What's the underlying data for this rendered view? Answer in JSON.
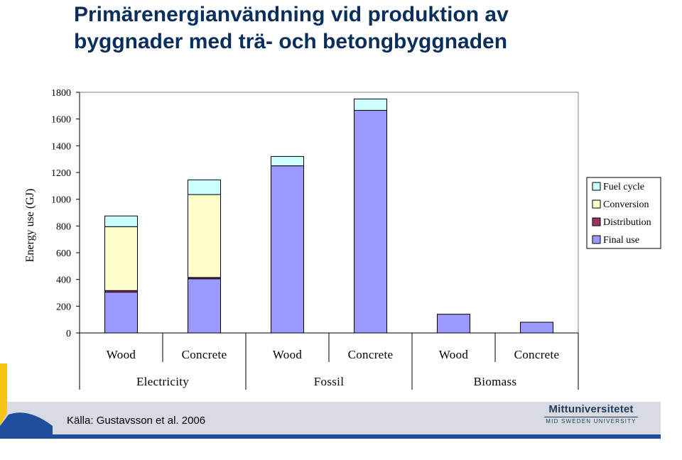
{
  "title_lines": [
    "Primärenergianvändning vid produktion av",
    "byggnader med trä- och betongbyggnaden"
  ],
  "source": "Källa: Gustavsson et al. 2006",
  "logo": {
    "name": "Mittuniversitetet",
    "sub": "MID SWEDEN UNIVERSITY"
  },
  "colors": {
    "fuel_cycle": "#ccffff",
    "conversion": "#ffffcc",
    "distribution": "#993366",
    "final_use": "#9999ff",
    "title": "#0b2f5c",
    "footer_band": "#d9dbe3",
    "accent_blue": "#1f4e9a",
    "accent_yellow": "#f6c318"
  },
  "chart_data": {
    "type": "bar",
    "stacked": true,
    "title": "",
    "ylabel": "Energy use (GJ)",
    "xlabel": "",
    "ylim": [
      0,
      1800
    ],
    "yticks": [
      0,
      200,
      400,
      600,
      800,
      1000,
      1200,
      1400,
      1600,
      1800
    ],
    "categories": [
      "Wood",
      "Concrete",
      "Wood",
      "Concrete",
      "Wood",
      "Concrete"
    ],
    "groups": [
      {
        "label": "Electricity",
        "span": 2
      },
      {
        "label": "Fossil",
        "span": 2
      },
      {
        "label": "Biomass",
        "span": 2
      }
    ],
    "series": [
      {
        "name": "Final use",
        "color": "#9999ff",
        "values": [
          305,
          405,
          1250,
          1665,
          140,
          80
        ]
      },
      {
        "name": "Distribution",
        "color": "#993366",
        "values": [
          12,
          10,
          0,
          0,
          0,
          0
        ]
      },
      {
        "name": "Conversion",
        "color": "#ffffcc",
        "values": [
          478,
          620,
          0,
          0,
          0,
          0
        ]
      },
      {
        "name": "Fuel cycle",
        "color": "#ccffff",
        "values": [
          80,
          110,
          70,
          85,
          0,
          0
        ]
      }
    ],
    "legend": {
      "placement": "right",
      "order": [
        "Fuel cycle",
        "Conversion",
        "Distribution",
        "Final use"
      ]
    },
    "grid": false
  }
}
